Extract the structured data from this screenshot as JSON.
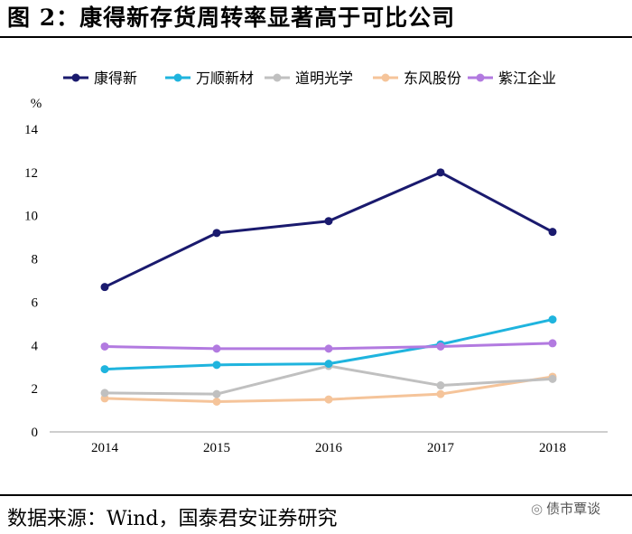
{
  "header": {
    "figure_title": "图 2：康得新存货周转率显著高于可比公司"
  },
  "footer": {
    "source": "数据来源：Wind，国泰君安证券研究",
    "watermark": "债市覃谈",
    "watermark_icon": "wechat-icon"
  },
  "chart_data": {
    "type": "line",
    "title": "康得新存货周转率显著高于可比公司",
    "xlabel": "",
    "ylabel": "%",
    "ylim": [
      0,
      14
    ],
    "yticks": [
      0,
      2,
      4,
      6,
      8,
      10,
      12,
      14
    ],
    "grid": false,
    "legend_position": "top",
    "categories": [
      "2014",
      "2015",
      "2016",
      "2017",
      "2018"
    ],
    "series": [
      {
        "name": "康得新",
        "color": "#1a1a6e",
        "values": [
          6.7,
          9.2,
          9.75,
          12.0,
          9.25
        ]
      },
      {
        "name": "万顺新材",
        "color": "#1fb4de",
        "values": [
          2.9,
          3.1,
          3.15,
          4.05,
          5.2
        ]
      },
      {
        "name": "道明光学",
        "color": "#c0c0c0",
        "values": [
          1.8,
          1.75,
          3.05,
          2.15,
          2.45
        ]
      },
      {
        "name": "东风股份",
        "color": "#f5c49a",
        "values": [
          1.55,
          1.4,
          1.5,
          1.75,
          2.55
        ]
      },
      {
        "name": "紫江企业",
        "color": "#b27ae0",
        "values": [
          3.95,
          3.85,
          3.85,
          3.95,
          4.1
        ]
      }
    ]
  }
}
